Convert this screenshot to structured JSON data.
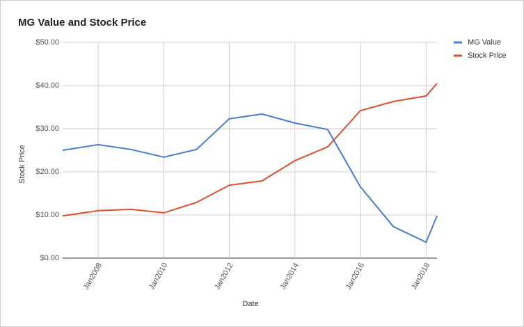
{
  "chart_data": {
    "type": "line",
    "title": "MG Value and Stock Price",
    "x_label": "Date",
    "y_label": "Stock Price",
    "x": [
      "2006-12",
      "2008-01",
      "2009-01",
      "2010-01",
      "2011-01",
      "2012-01",
      "2013-01",
      "2014-01",
      "2015-01",
      "2016-01",
      "2017-01",
      "2018-01",
      "2018-05"
    ],
    "series": [
      {
        "name": "MG Value",
        "color": "#4a7bd4",
        "values": [
          25.0,
          26.3,
          25.2,
          23.4,
          25.2,
          32.3,
          33.4,
          31.3,
          29.8,
          16.5,
          7.3,
          3.7,
          9.8
        ]
      },
      {
        "name": "Stock Price",
        "color": "#dc4f2c",
        "values": [
          9.8,
          11.0,
          11.3,
          10.5,
          12.9,
          16.9,
          17.9,
          22.6,
          25.8,
          34.2,
          36.3,
          37.6,
          40.5
        ]
      }
    ],
    "xlim": [
      "2006-12",
      "2018-05"
    ],
    "xticks": [
      {
        "value": "2008-01",
        "label": "Jan2008"
      },
      {
        "value": "2010-01",
        "label": "Jan2010"
      },
      {
        "value": "2012-01",
        "label": "Jan2012"
      },
      {
        "value": "2014-01",
        "label": "Jan2014"
      },
      {
        "value": "2016-01",
        "label": "Jan2016"
      },
      {
        "value": "2018-01",
        "label": "Jan2018"
      }
    ],
    "ylim": [
      0,
      50
    ],
    "yticks": [
      {
        "value": 0,
        "label": "$0.00"
      },
      {
        "value": 10,
        "label": "$10.00"
      },
      {
        "value": 20,
        "label": "$20.00"
      },
      {
        "value": 30,
        "label": "$30.00"
      },
      {
        "value": 40,
        "label": "$40.00"
      },
      {
        "value": 50,
        "label": "$50.00"
      }
    ],
    "grid": true,
    "legend": "right"
  }
}
